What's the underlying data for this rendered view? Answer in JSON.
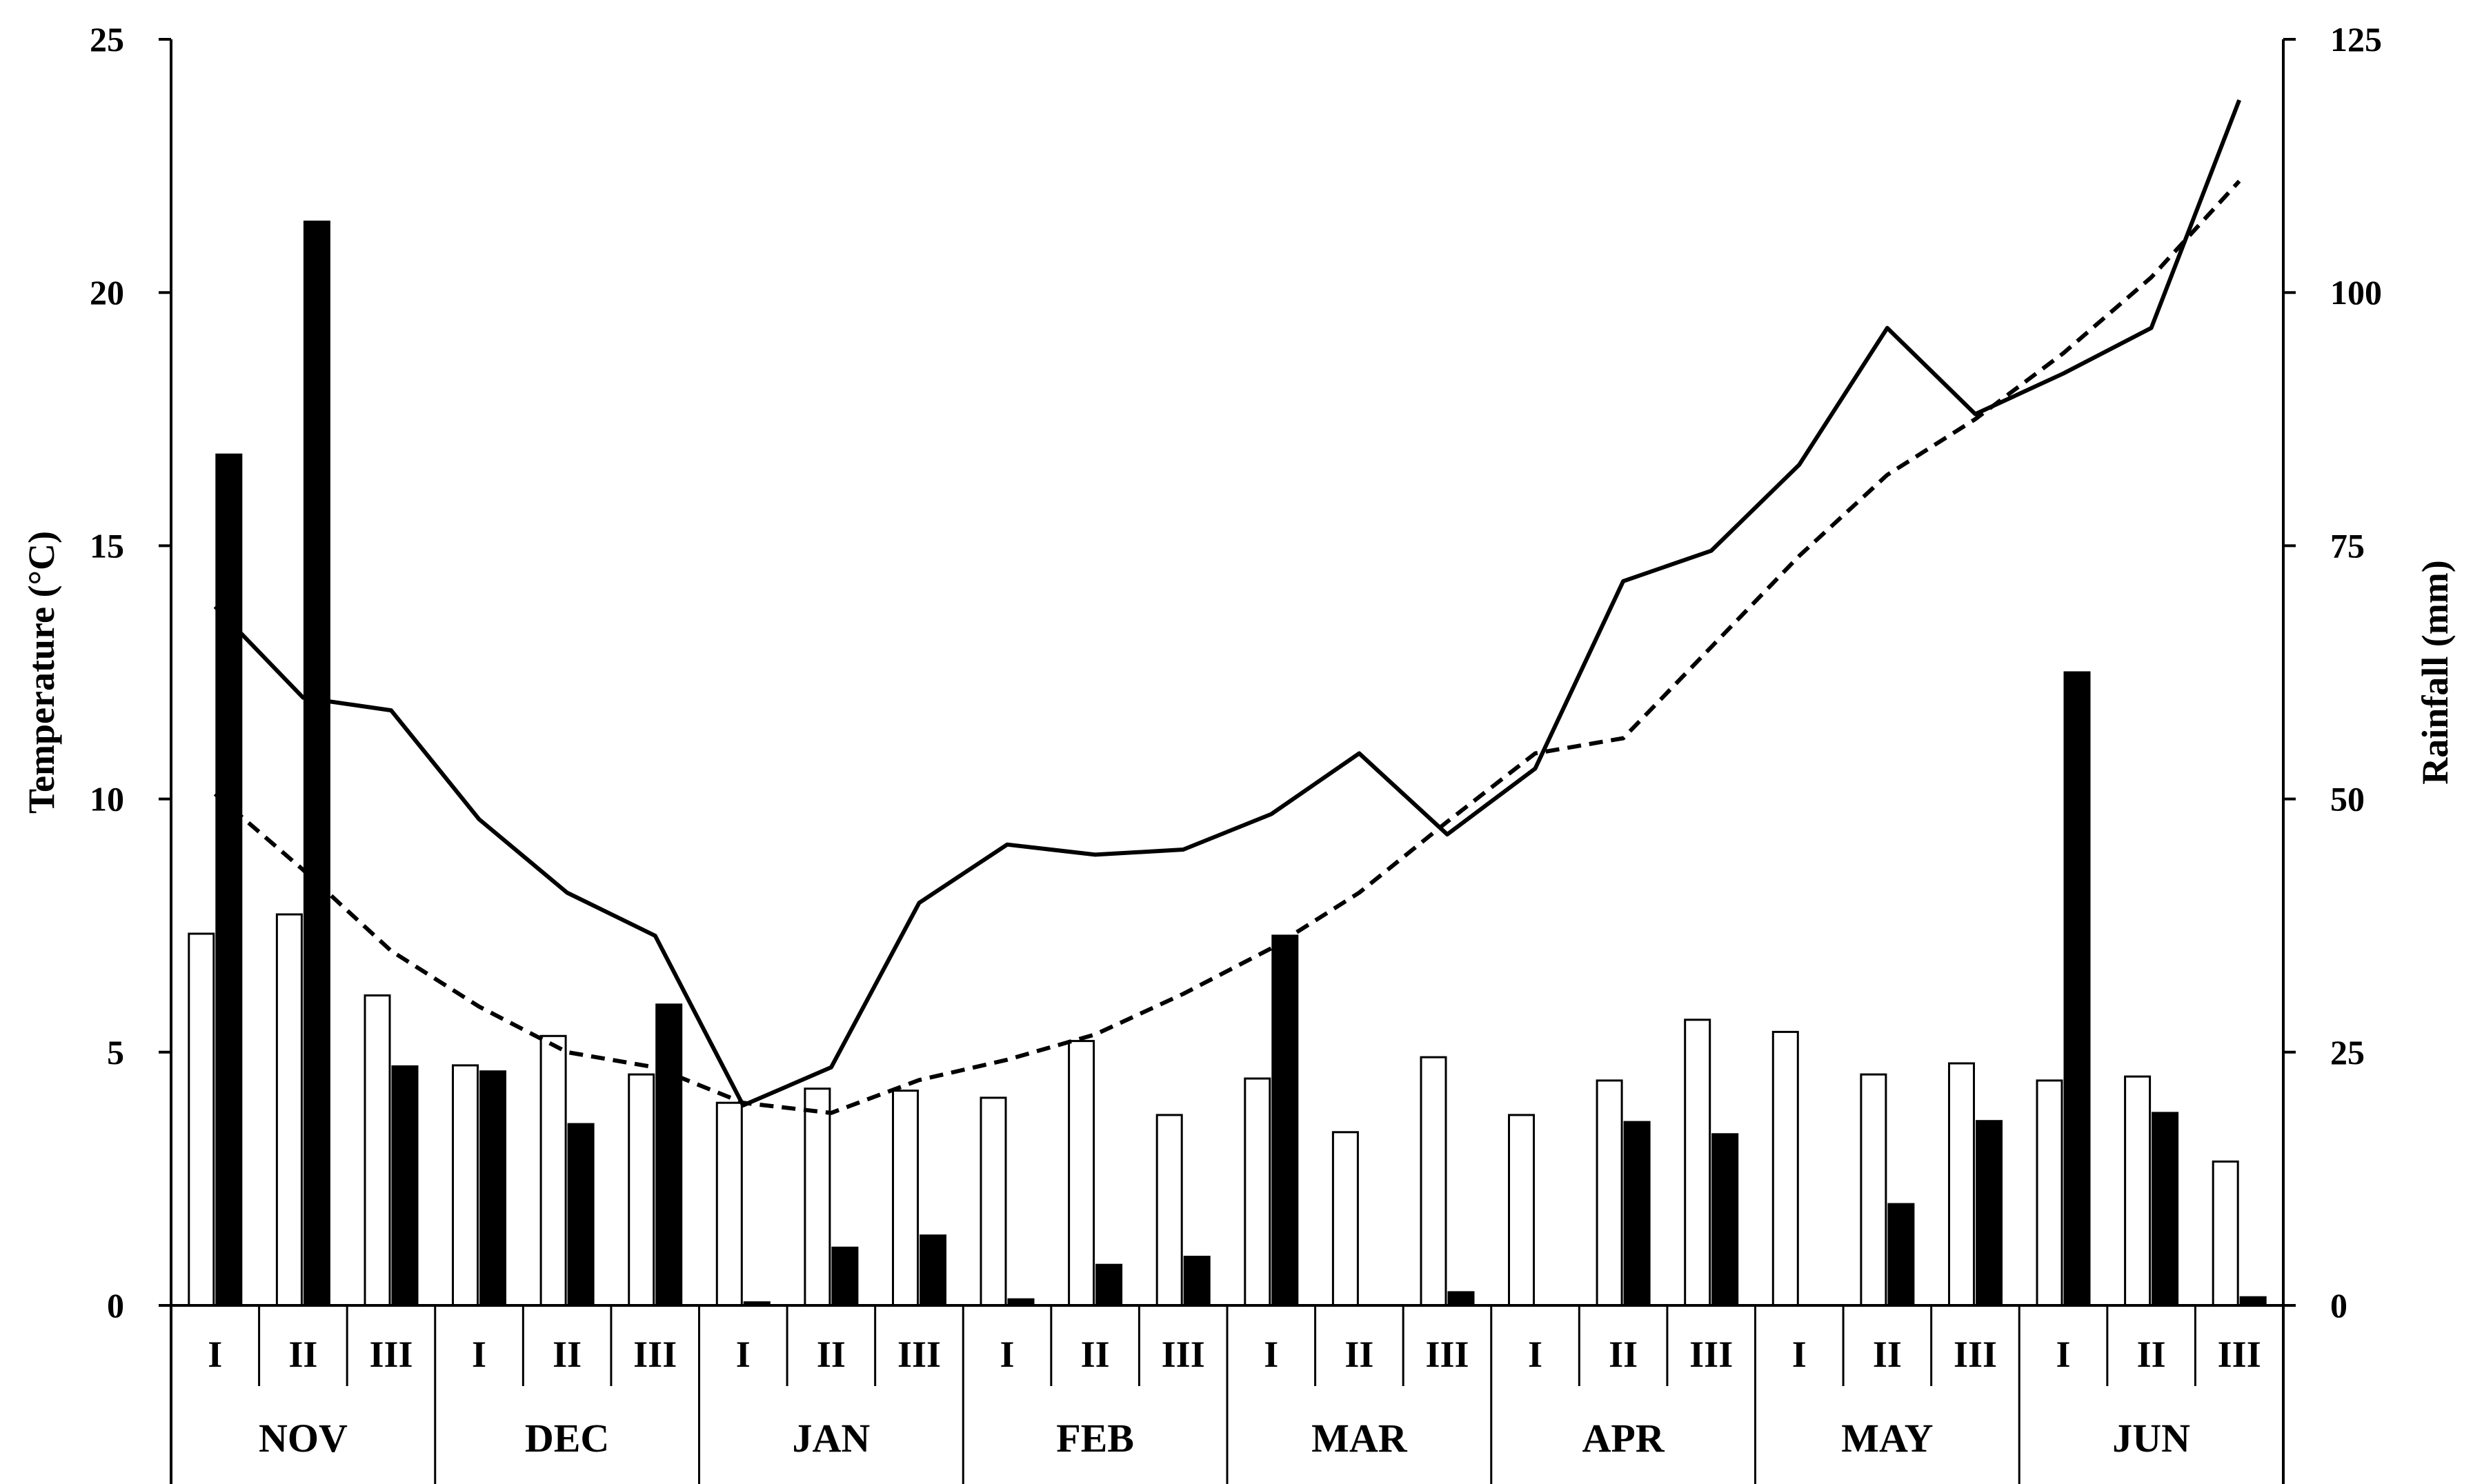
{
  "chart_data": {
    "type": "bar",
    "title": "",
    "left_axis": {
      "label": "Temperature (°C)",
      "ylim": [
        0,
        25
      ],
      "ticks": [
        0,
        5,
        10,
        15,
        20,
        25
      ]
    },
    "right_axis": {
      "label": "Rainfall (mm)",
      "ylim": [
        0,
        125
      ],
      "ticks": [
        0,
        25,
        50,
        75,
        100,
        125
      ]
    },
    "months": [
      "NOV",
      "DEC",
      "JAN",
      "FEB",
      "MAR",
      "APR",
      "MAY",
      "JUN"
    ],
    "decades": [
      "I",
      "II",
      "III"
    ],
    "bar_series": [
      {
        "style": "white",
        "axis": "right",
        "values": [
          36.7,
          38.6,
          30.6,
          23.7,
          26.6,
          22.8,
          20.0,
          21.4,
          21.2,
          20.5,
          26.1,
          18.8,
          22.4,
          17.1,
          24.5,
          18.8,
          22.2,
          28.2,
          27.0,
          22.8,
          23.9,
          22.2,
          22.6,
          14.2
        ]
      },
      {
        "style": "black",
        "axis": "right",
        "values": [
          84.0,
          107.0,
          23.6,
          23.1,
          17.9,
          29.7,
          0.3,
          5.7,
          6.9,
          0.6,
          4.0,
          4.8,
          36.5,
          0,
          1.3,
          0,
          18.1,
          16.9,
          0,
          10.0,
          18.2,
          62.5,
          19.0,
          0.8
        ]
      }
    ],
    "line_series": [
      {
        "style": "solid",
        "axis": "left",
        "values": [
          13.8,
          12.0,
          11.75,
          9.6,
          8.15,
          7.3,
          3.95,
          4.7,
          7.95,
          9.1,
          8.9,
          9.0,
          9.7,
          10.9,
          9.3,
          10.6,
          14.3,
          14.9,
          16.6,
          19.3,
          17.6,
          18.4,
          19.3,
          23.8
        ]
      },
      {
        "style": "dashed",
        "axis": "left",
        "values": [
          10.1,
          8.6,
          7.0,
          5.9,
          5.0,
          4.7,
          4.0,
          3.8,
          4.45,
          4.85,
          5.35,
          6.15,
          7.05,
          8.15,
          9.55,
          10.9,
          11.2,
          13.0,
          14.8,
          16.4,
          17.5,
          18.8,
          20.3,
          22.2
        ]
      }
    ]
  }
}
